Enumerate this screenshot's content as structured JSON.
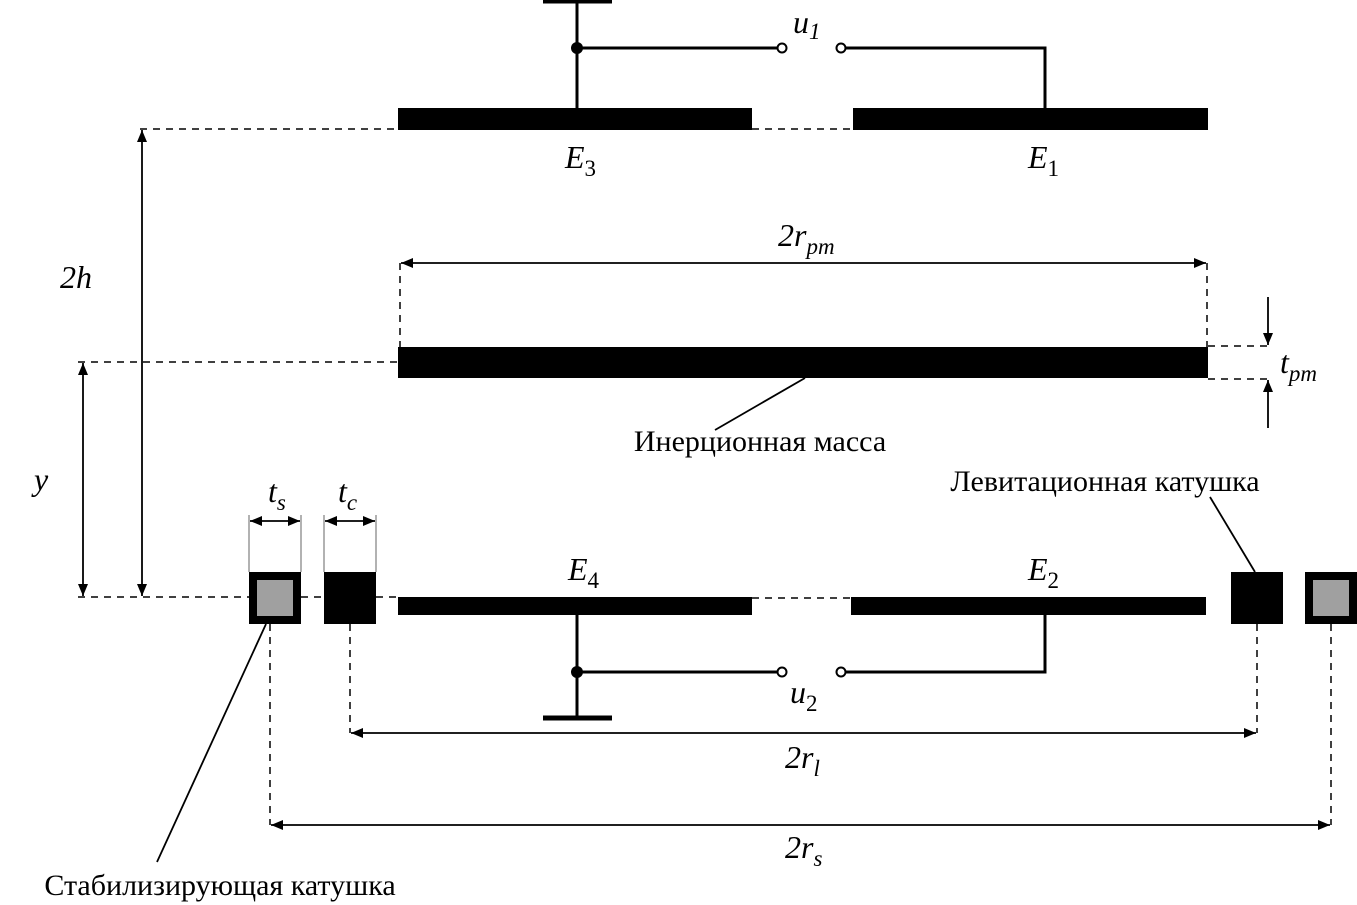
{
  "labels": {
    "u1": "u",
    "u1_sub": "1",
    "u2": "u",
    "u2_sub": "2",
    "e1": "E",
    "e1_sub": "1",
    "e2": "E",
    "e2_sub": "2",
    "e3": "E",
    "e3_sub": "3",
    "e4": "E",
    "e4_sub": "4",
    "r_pm": "2r",
    "r_pm_sub": "pm",
    "t_pm": "t",
    "t_pm_sub": "pm",
    "h": "2h",
    "y": "y",
    "t_s": "t",
    "t_s_sub": "s",
    "t_c": "t",
    "t_c_sub": "c",
    "r_l": "2r",
    "r_l_sub": "l",
    "r_s": "2r",
    "r_s_sub": "s",
    "proof_mass": "Инерционная масса",
    "levitation_coil": "Левитационная катушка",
    "stabilizing_coil": "Стабилизирующая катушка"
  },
  "colors": {
    "ink": "#000000",
    "coil_core": "#a0a0a0"
  }
}
